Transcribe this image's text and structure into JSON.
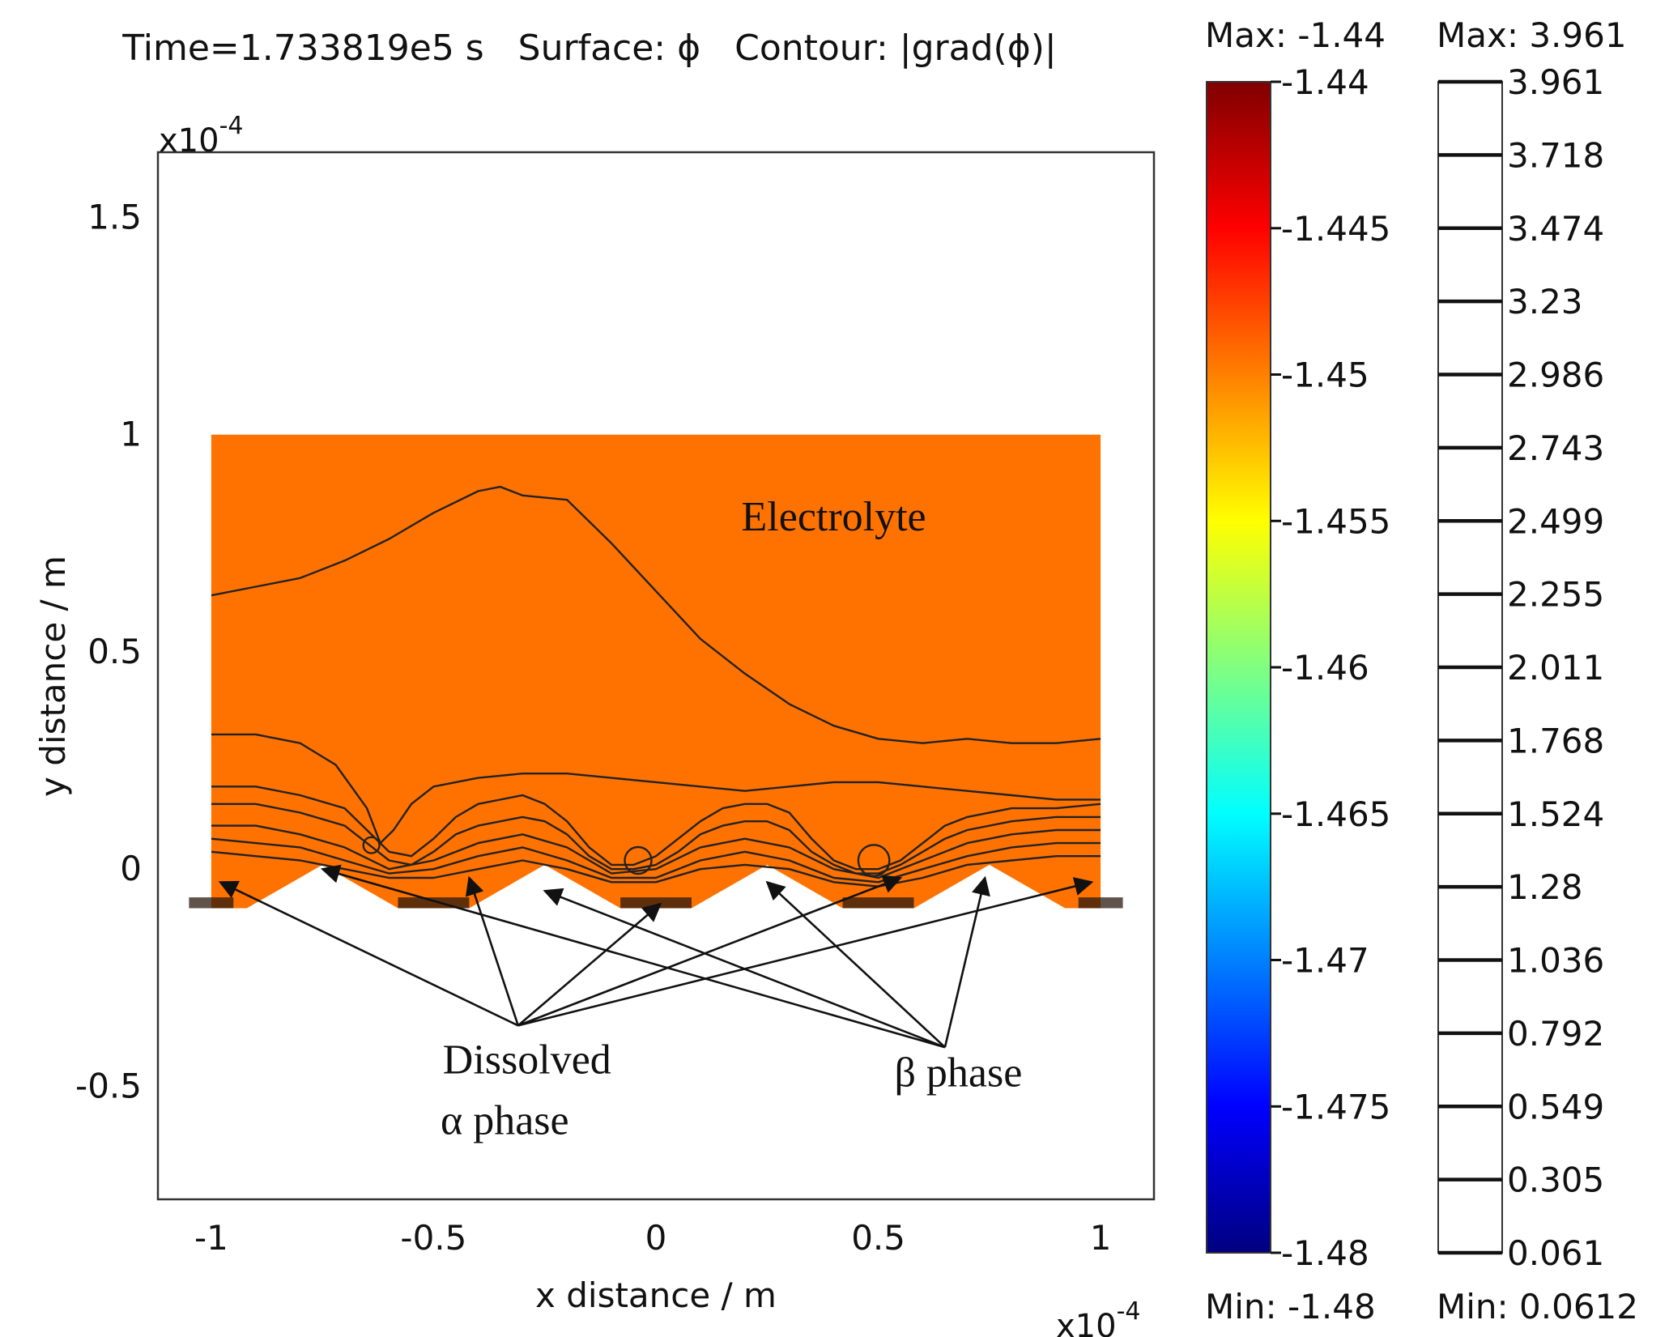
{
  "chart_data": {
    "type": "heatmap",
    "title": "Time=1.733819e5 s   Surface: ϕ   Contour: |grad(ϕ)|",
    "xlabel": "x distance / m",
    "ylabel": "y distance / m",
    "x_multiplier": "x10",
    "x_multiplier_exp": "-4",
    "y_multiplier": "x10",
    "y_multiplier_exp": "-4",
    "xlim": [
      -1.12,
      1.12
    ],
    "ylim": [
      -0.76,
      1.65
    ],
    "x_ticks": [
      -1,
      -0.5,
      0,
      0.5,
      1
    ],
    "x_tick_labels": [
      "-1",
      "-0.5",
      "0",
      "0.5",
      "1"
    ],
    "y_ticks": [
      -0.5,
      0,
      0.5,
      1,
      1.5
    ],
    "y_tick_labels": [
      "-0.5",
      "0",
      "0.5",
      "1",
      "1.5"
    ],
    "grid": false,
    "domain": {
      "x": [
        -1,
        1
      ],
      "y": [
        -0.09,
        1
      ]
    },
    "surface_color": "#ff7200",
    "particle_row": {
      "beta_peaks_x": [
        -0.75,
        -0.25,
        0.25,
        0.75
      ],
      "peak_y": 0.01,
      "base_y": -0.09,
      "half_width": 0.17
    },
    "contour_lines": [
      {
        "x": [
          -1,
          -0.9,
          -0.8,
          -0.7,
          -0.6,
          -0.5,
          -0.4,
          -0.35,
          -0.3,
          -0.2,
          -0.1,
          0,
          0.1,
          0.2,
          0.3,
          0.4,
          0.5,
          0.6,
          0.7,
          0.8,
          0.9,
          1
        ],
        "y": [
          0.63,
          0.65,
          0.67,
          0.71,
          0.76,
          0.82,
          0.87,
          0.88,
          0.86,
          0.85,
          0.75,
          0.64,
          0.53,
          0.45,
          0.38,
          0.33,
          0.3,
          0.29,
          0.3,
          0.29,
          0.29,
          0.3
        ]
      },
      {
        "x": [
          -1,
          -0.9,
          -0.8,
          -0.72,
          -0.65,
          -0.62,
          -0.59,
          -0.55,
          -0.5,
          -0.4,
          -0.3,
          -0.2,
          -0.1,
          0,
          0.1,
          0.2,
          0.3,
          0.4,
          0.5,
          0.6,
          0.7,
          0.8,
          0.9,
          1
        ],
        "y": [
          0.31,
          0.31,
          0.29,
          0.24,
          0.14,
          0.06,
          0.09,
          0.15,
          0.19,
          0.21,
          0.22,
          0.22,
          0.21,
          0.2,
          0.19,
          0.18,
          0.19,
          0.2,
          0.2,
          0.19,
          0.18,
          0.17,
          0.16,
          0.16
        ]
      },
      {
        "x": [
          -1,
          -0.9,
          -0.8,
          -0.7,
          -0.65,
          -0.6,
          -0.55,
          -0.5,
          -0.45,
          -0.4,
          -0.3,
          -0.25,
          -0.2,
          -0.15,
          -0.1,
          -0.05,
          0,
          0.05,
          0.1,
          0.15,
          0.2,
          0.25,
          0.3,
          0.35,
          0.4,
          0.45,
          0.5,
          0.55,
          0.6,
          0.65,
          0.7,
          0.8,
          0.9,
          1
        ],
        "y": [
          0.19,
          0.19,
          0.17,
          0.14,
          0.09,
          0.04,
          0.03,
          0.07,
          0.12,
          0.15,
          0.17,
          0.15,
          0.11,
          0.05,
          0.01,
          0.01,
          0.03,
          0.07,
          0.11,
          0.14,
          0.15,
          0.15,
          0.13,
          0.07,
          0.02,
          0.0,
          0.0,
          0.02,
          0.06,
          0.1,
          0.12,
          0.14,
          0.14,
          0.15
        ]
      },
      {
        "x": [
          -1,
          -0.9,
          -0.8,
          -0.7,
          -0.65,
          -0.6,
          -0.55,
          -0.5,
          -0.45,
          -0.4,
          -0.3,
          -0.25,
          -0.2,
          -0.15,
          -0.1,
          -0.05,
          0,
          0.05,
          0.1,
          0.15,
          0.2,
          0.25,
          0.3,
          0.35,
          0.4,
          0.45,
          0.5,
          0.55,
          0.6,
          0.65,
          0.7,
          0.8,
          0.9,
          1
        ],
        "y": [
          0.15,
          0.15,
          0.13,
          0.1,
          0.06,
          0.02,
          0.01,
          0.04,
          0.08,
          0.1,
          0.12,
          0.11,
          0.08,
          0.03,
          0.0,
          0.0,
          0.01,
          0.04,
          0.08,
          0.1,
          0.11,
          0.11,
          0.09,
          0.04,
          0.01,
          -0.01,
          -0.01,
          0.01,
          0.04,
          0.07,
          0.09,
          0.11,
          0.12,
          0.12
        ]
      },
      {
        "x": [
          -1,
          -0.9,
          -0.8,
          -0.7,
          -0.6,
          -0.5,
          -0.4,
          -0.3,
          -0.2,
          -0.1,
          0,
          0.1,
          0.2,
          0.3,
          0.4,
          0.5,
          0.6,
          0.7,
          0.8,
          0.9,
          1
        ],
        "y": [
          0.1,
          0.1,
          0.08,
          0.05,
          0.0,
          0.02,
          0.06,
          0.08,
          0.05,
          -0.01,
          0.0,
          0.05,
          0.07,
          0.05,
          0.0,
          -0.02,
          0.02,
          0.06,
          0.08,
          0.09,
          0.09
        ]
      },
      {
        "x": [
          -1,
          -0.9,
          -0.8,
          -0.7,
          -0.6,
          -0.5,
          -0.4,
          -0.3,
          -0.2,
          -0.1,
          0,
          0.1,
          0.2,
          0.3,
          0.4,
          0.5,
          0.6,
          0.7,
          0.8,
          0.9,
          1
        ],
        "y": [
          0.07,
          0.06,
          0.05,
          0.02,
          -0.01,
          0.0,
          0.03,
          0.05,
          0.02,
          -0.02,
          -0.02,
          0.02,
          0.04,
          0.02,
          -0.02,
          -0.03,
          0.0,
          0.03,
          0.05,
          0.06,
          0.06
        ]
      },
      {
        "x": [
          -1,
          -0.9,
          -0.8,
          -0.7,
          -0.6,
          -0.5,
          -0.4,
          -0.3,
          -0.2,
          -0.1,
          0,
          0.1,
          0.2,
          0.3,
          0.4,
          0.5,
          0.6,
          0.7,
          0.8,
          0.9,
          1
        ],
        "y": [
          0.04,
          0.03,
          0.02,
          0.0,
          -0.02,
          -0.02,
          0.0,
          0.02,
          0.0,
          -0.03,
          -0.03,
          0.0,
          0.01,
          0.0,
          -0.03,
          -0.04,
          -0.02,
          0.01,
          0.02,
          0.03,
          0.03
        ]
      }
    ],
    "contour_loops": [
      {
        "cx": -0.64,
        "cy": 0.055,
        "r": 0.018
      },
      {
        "cx": -0.04,
        "cy": 0.02,
        "r": 0.03
      },
      {
        "cx": 0.49,
        "cy": 0.02,
        "r": 0.035
      }
    ],
    "annotations": {
      "electrolyte": {
        "text": "Electrolyte",
        "x": 0.4,
        "y": 0.78
      },
      "dissolved_line1": {
        "text": "Dissolved",
        "x": -0.29,
        "y": -0.47
      },
      "dissolved_line2": {
        "text": "α phase",
        "x": -0.34,
        "y": -0.61
      },
      "beta": {
        "text": "β phase",
        "x": 0.68,
        "y": -0.5
      }
    },
    "arrow_groups": [
      {
        "from": [
          -0.31,
          -0.36
        ],
        "to": [
          [
            -0.98,
            -0.03
          ],
          [
            -0.42,
            -0.02
          ],
          [
            0.01,
            -0.08
          ],
          [
            0.55,
            -0.02
          ],
          [
            0.98,
            -0.03
          ]
        ]
      },
      {
        "from": [
          0.65,
          -0.41
        ],
        "to": [
          [
            -0.75,
            0.0
          ],
          [
            -0.25,
            -0.05
          ],
          [
            0.25,
            -0.03
          ],
          [
            0.74,
            -0.02
          ]
        ]
      }
    ],
    "colorbars": [
      {
        "name": "surface",
        "max_label": "Max: -1.44",
        "min_label": "Min: -1.48",
        "tick_labels": [
          "-1.44",
          "-1.445",
          "-1.45",
          "-1.455",
          "-1.46",
          "-1.465",
          "-1.47",
          "-1.475",
          "-1.48"
        ],
        "colormap": [
          "#800000",
          "#ff0000",
          "#ff8000",
          "#ffff00",
          "#80ff80",
          "#00ffff",
          "#0080ff",
          "#0000ff",
          "#000080"
        ]
      },
      {
        "name": "contour",
        "max_label": "Max: 3.961",
        "min_label": "Min: 0.0612",
        "tick_labels": [
          "3.961",
          "3.718",
          "3.474",
          "3.23",
          "2.986",
          "2.743",
          "2.499",
          "2.255",
          "2.011",
          "1.768",
          "1.524",
          "1.28",
          "1.036",
          "0.792",
          "0.549",
          "0.305",
          "0.061"
        ]
      }
    ]
  }
}
